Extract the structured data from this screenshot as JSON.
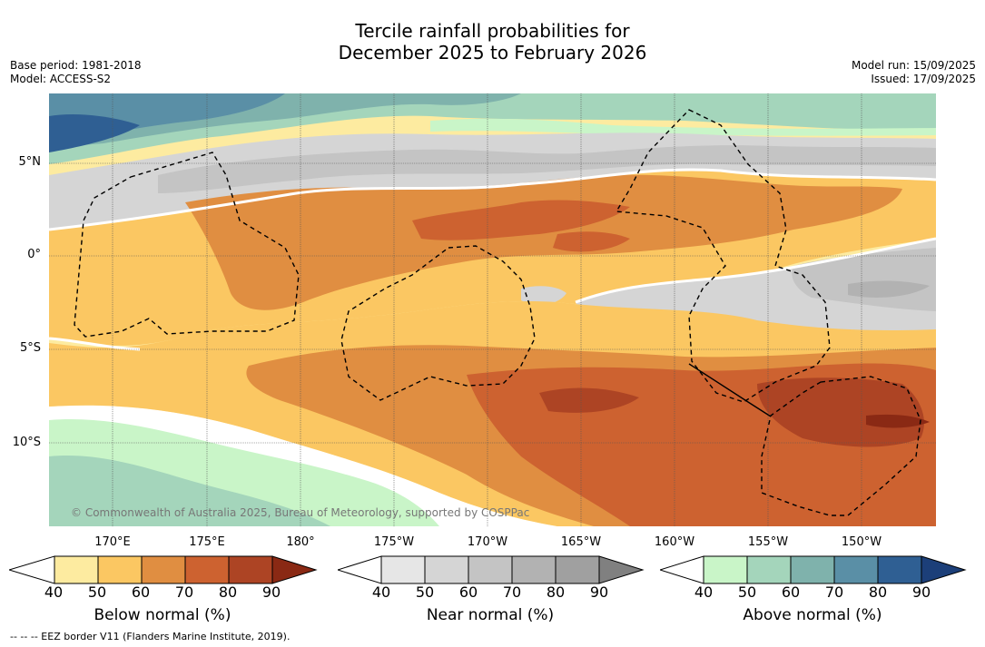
{
  "title_line1": "Tercile rainfall probabilities for",
  "title_line2": "December 2025 to February 2026",
  "meta_left": {
    "base_period": "Base period: 1981-2018",
    "model": "Model: ACCESS-S2"
  },
  "meta_right": {
    "model_run": "Model run: 15/09/2025",
    "issued": "Issued: 17/09/2025"
  },
  "lat_labels": [
    "5°N",
    "0°",
    "5°S",
    "10°S"
  ],
  "lon_labels": [
    "170°E",
    "175°E",
    "180°",
    "175°W",
    "170°W",
    "165°W",
    "160°W",
    "155°W",
    "150°W"
  ],
  "copyright": "© Commonwealth of Australia 2025, Bureau of Meteorology, supported by COSPPac",
  "footnote": "--  --  -- EEZ border V11 (Flanders Marine Institute, 2019).",
  "legends": [
    {
      "title": "Below normal (%)",
      "ticks": [
        "40",
        "50",
        "60",
        "70",
        "80",
        "90"
      ],
      "colors": [
        "#ffffff",
        "#fdeba0",
        "#fbc762",
        "#e08e41",
        "#cd6230",
        "#ad4424",
        "#8a2914"
      ]
    },
    {
      "title": "Near normal (%)",
      "ticks": [
        "40",
        "50",
        "60",
        "70",
        "80",
        "90"
      ],
      "colors": [
        "#ffffff",
        "#e6e6e6",
        "#d5d5d5",
        "#c4c4c4",
        "#b2b2b2",
        "#a0a0a0",
        "#808080"
      ]
    },
    {
      "title": "Above normal (%)",
      "ticks": [
        "40",
        "50",
        "60",
        "70",
        "80",
        "90"
      ],
      "colors": [
        "#ffffff",
        "#c9f5c8",
        "#a4d5bb",
        "#7fb2ac",
        "#5a8fa6",
        "#2f5f93",
        "#1c3f79"
      ]
    }
  ]
}
